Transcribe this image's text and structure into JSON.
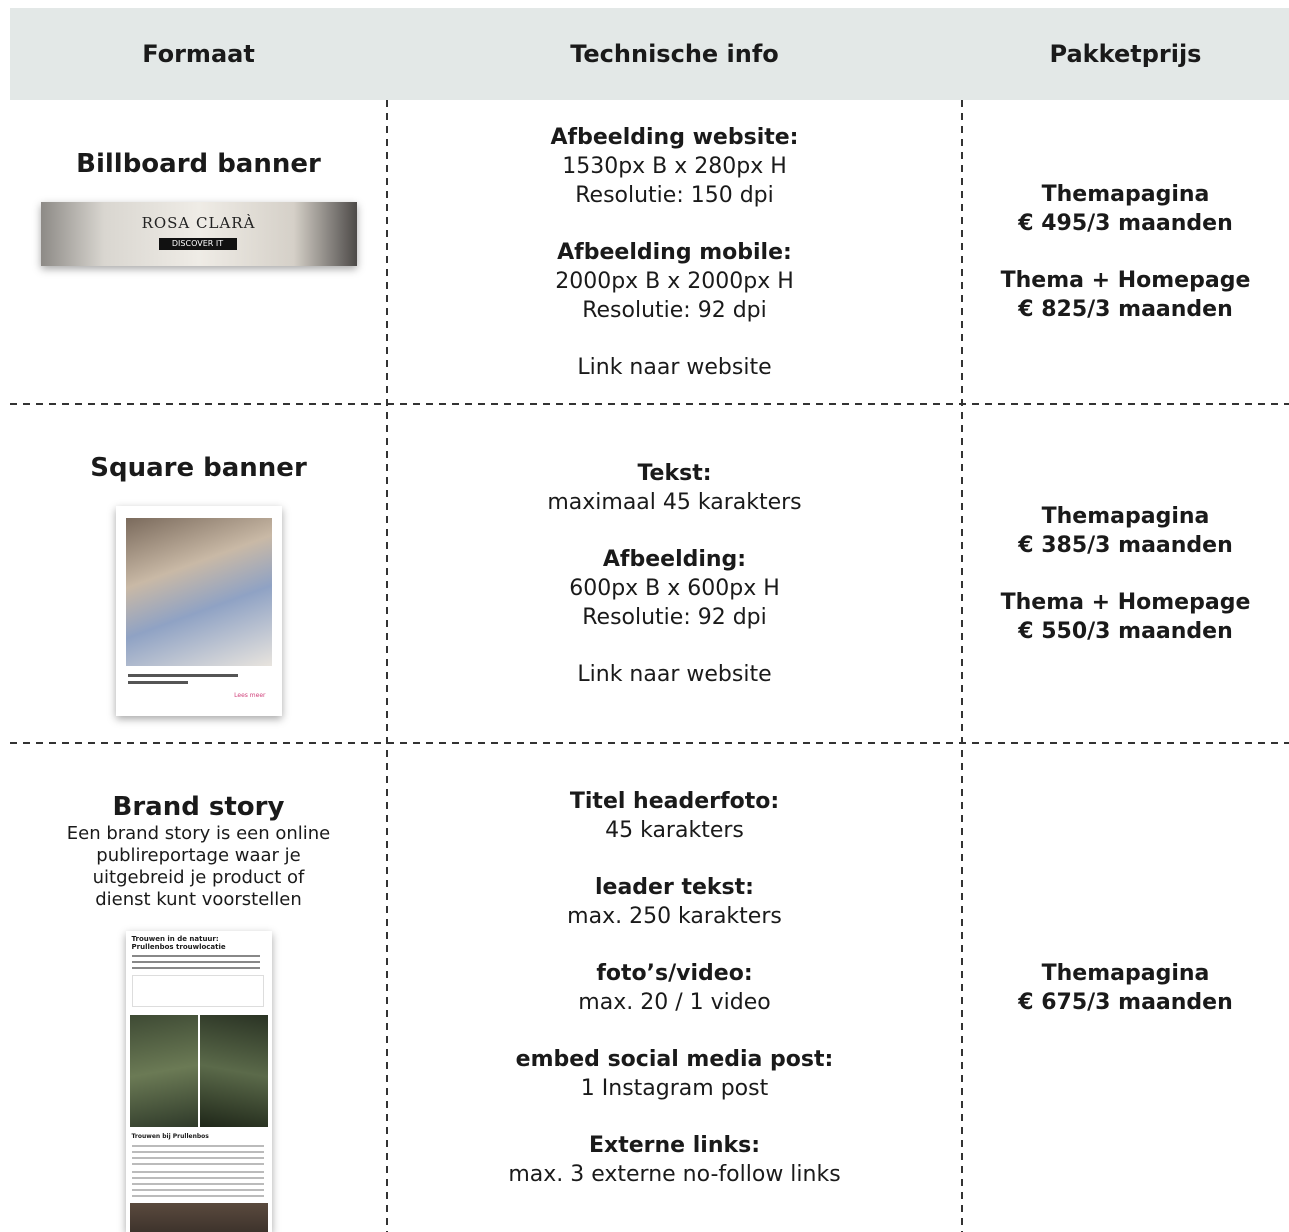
{
  "table": {
    "headers": [
      "Formaat",
      "Technische info",
      "Pakketprijs"
    ],
    "rows": [
      {
        "format": {
          "title": "Billboard banner",
          "image_texts": [
            "ROSA CLARÀ",
            "DISCOVER IT"
          ]
        },
        "info": [
          {
            "label": "Afbeelding website:",
            "lines": [
              "1530px B x 280px H",
              "Resolutie: 150 dpi"
            ]
          },
          {
            "label": "Afbeelding mobile:",
            "lines": [
              "2000px B x 2000px H",
              "Resolutie: 92 dpi"
            ]
          }
        ],
        "link": "Link naar website",
        "prices": [
          {
            "name": "Themapagina",
            "price": "€ 495/3 maanden"
          },
          {
            "name": "Thema + Homepage",
            "price": "€ 825/3 maanden"
          }
        ]
      },
      {
        "format": {
          "title": "Square banner",
          "image_texts": [
            "Lees meer"
          ]
        },
        "info": [
          {
            "label": "Tekst:",
            "lines": [
              "maximaal 45 karakters"
            ]
          },
          {
            "label": "Afbeelding:",
            "lines": [
              "600px B x 600px H",
              "Resolutie: 92 dpi"
            ]
          }
        ],
        "link": "Link naar website",
        "prices": [
          {
            "name": "Themapagina",
            "price": "€ 385/3 maanden"
          },
          {
            "name": "Thema + Homepage",
            "price": "€ 550/3 maanden"
          }
        ]
      },
      {
        "format": {
          "title": "Brand story",
          "description": "Een brand story is een online publireportage waar je uitgebreid je product of dienst kunt voorstellen",
          "image_texts": [
            "Trouwen in de natuur: Prullenbos trouwlocatie",
            "Trouwen bij Prullenbos"
          ]
        },
        "info": [
          {
            "label": "Titel headerfoto:",
            "lines": [
              "45 karakters"
            ]
          },
          {
            "label": "leader tekst:",
            "lines": [
              "max. 250 karakters"
            ]
          },
          {
            "label": "foto’s/video:",
            "lines": [
              "max. 20 / 1 video"
            ]
          },
          {
            "label": "embed social media post:",
            "lines": [
              "1 Instagram post"
            ]
          },
          {
            "label": "Externe links:",
            "lines": [
              "max. 3 externe no-follow links"
            ]
          }
        ],
        "prices": [
          {
            "name": "Themapagina",
            "price": "€ 675/3 maanden"
          }
        ]
      }
    ]
  }
}
